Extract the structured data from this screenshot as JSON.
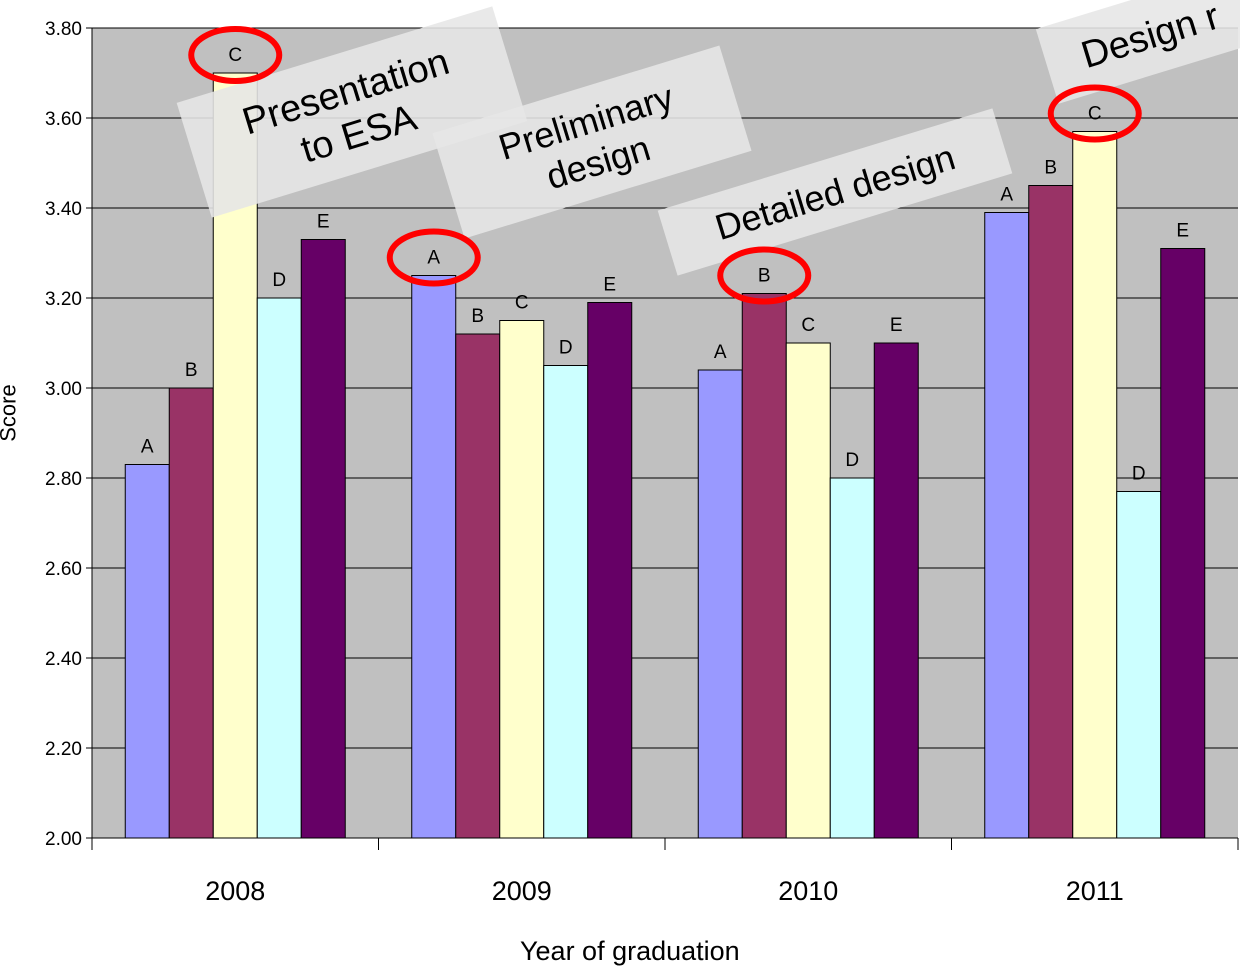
{
  "chart_data": {
    "type": "bar",
    "xlabel": "Year of graduation",
    "ylabel": "Score",
    "ylim": [
      2.0,
      3.8
    ],
    "yticks": [
      "2.00",
      "2.20",
      "2.40",
      "2.60",
      "2.80",
      "3.00",
      "3.20",
      "3.40",
      "3.60",
      "3.80"
    ],
    "grid": true,
    "categories": [
      "2008",
      "2009",
      "2010",
      "2011"
    ],
    "series": [
      {
        "name": "A",
        "color": "#9999ff",
        "values": [
          2.83,
          3.25,
          3.04,
          3.39
        ]
      },
      {
        "name": "B",
        "color": "#993366",
        "values": [
          3.0,
          3.12,
          3.21,
          3.45
        ]
      },
      {
        "name": "C",
        "color": "#ffffcc",
        "values": [
          3.7,
          3.15,
          3.1,
          3.57
        ]
      },
      {
        "name": "D",
        "color": "#ccffff",
        "values": [
          3.2,
          3.05,
          2.8,
          2.77
        ]
      },
      {
        "name": "E",
        "color": "#660066",
        "values": [
          3.33,
          3.19,
          3.1,
          3.31
        ]
      }
    ],
    "plot_background": "#c0c0c0",
    "highlight_color": "#ff0000",
    "highlights": [
      {
        "category": "2008",
        "series": "C"
      },
      {
        "category": "2009",
        "series": "A"
      },
      {
        "category": "2010",
        "series": "B"
      },
      {
        "category": "2011",
        "series": "C"
      }
    ],
    "annotations": [
      {
        "lines": [
          "Presentation",
          "to ESA"
        ]
      },
      {
        "lines": [
          "Preliminary",
          "design"
        ]
      },
      {
        "lines": [
          "Detailed design"
        ]
      },
      {
        "lines": [
          "Design r"
        ]
      }
    ]
  }
}
